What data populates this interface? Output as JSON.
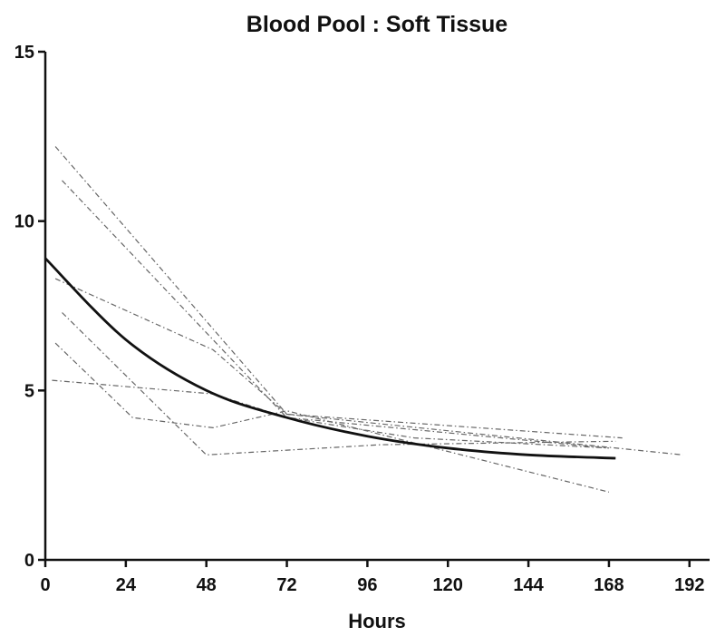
{
  "chart_data": {
    "type": "line",
    "title": "Blood Pool : Soft Tissue",
    "xlabel": "Hours",
    "ylabel": "",
    "xlim": [
      0,
      198
    ],
    "ylim": [
      0,
      15
    ],
    "xticks": [
      0,
      24,
      48,
      72,
      96,
      120,
      144,
      168,
      192
    ],
    "yticks": [
      0,
      5,
      10,
      15
    ],
    "grid": false,
    "series": [
      {
        "points": [
          [
            3,
            12.2
          ],
          [
            72,
            4.3
          ],
          [
            172,
            3.6
          ]
        ]
      },
      {
        "points": [
          [
            5,
            11.2
          ],
          [
            72,
            4.2
          ],
          [
            168,
            3.3
          ]
        ]
      },
      {
        "points": [
          [
            3,
            8.3
          ],
          [
            50,
            6.2
          ],
          [
            72,
            4.3
          ],
          [
            190,
            3.1
          ]
        ]
      },
      {
        "points": [
          [
            5,
            7.3
          ],
          [
            48,
            3.1
          ],
          [
            100,
            3.4
          ],
          [
            170,
            3.5
          ]
        ]
      },
      {
        "points": [
          [
            3,
            6.4
          ],
          [
            26,
            4.2
          ],
          [
            50,
            3.9
          ],
          [
            72,
            4.4
          ],
          [
            168,
            2.0
          ]
        ]
      },
      {
        "points": [
          [
            2,
            5.3
          ],
          [
            50,
            4.9
          ],
          [
            72,
            4.2
          ],
          [
            110,
            3.6
          ],
          [
            168,
            3.3
          ]
        ]
      }
    ],
    "fit": {
      "model": "exponential decay",
      "x_range": [
        0,
        170
      ],
      "points": [
        [
          0,
          8.9
        ],
        [
          24,
          6.5
        ],
        [
          48,
          5.0
        ],
        [
          72,
          4.2
        ],
        [
          96,
          3.65
        ],
        [
          120,
          3.3
        ],
        [
          144,
          3.1
        ],
        [
          170,
          3.0
        ]
      ]
    }
  }
}
